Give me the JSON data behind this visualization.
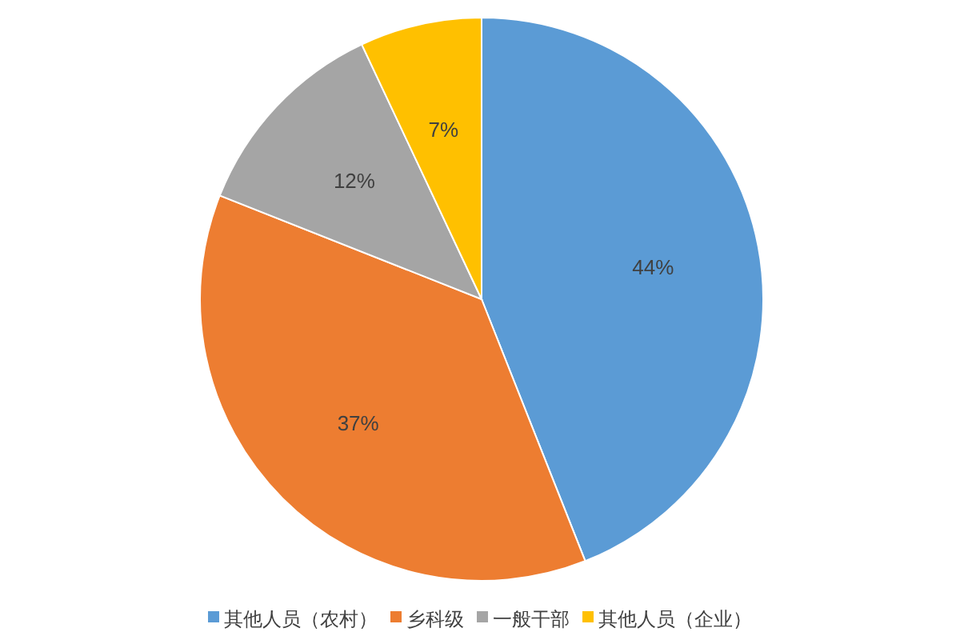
{
  "chart_data": {
    "type": "pie",
    "categories": [
      "其他人员（农村）",
      "乡科级",
      "一般干部",
      "其他人员（企业）"
    ],
    "values": [
      44,
      37,
      12,
      7
    ],
    "colors": [
      "#5b9bd5",
      "#ed7d31",
      "#a5a5a5",
      "#ffc000"
    ],
    "value_labels": [
      "44%",
      "37%",
      "12%",
      "7%"
    ],
    "legend": "bottom"
  }
}
